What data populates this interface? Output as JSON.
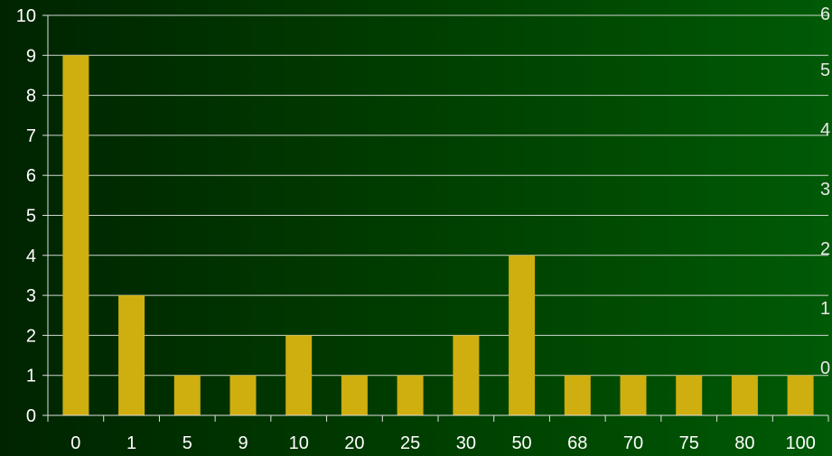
{
  "chart_data": {
    "type": "bar",
    "title": "",
    "xlabel": "",
    "ylabel": "",
    "categories": [
      "0",
      "1",
      "5",
      "9",
      "10",
      "20",
      "25",
      "30",
      "50",
      "68",
      "70",
      "75",
      "80",
      "100"
    ],
    "values": [
      9,
      3,
      1,
      1,
      2,
      1,
      1,
      2,
      4,
      1,
      1,
      1,
      1,
      1
    ],
    "ylim": [
      0,
      10
    ],
    "yticks": [
      "0",
      "1",
      "2",
      "3",
      "4",
      "5",
      "6",
      "7",
      "8",
      "9",
      "10"
    ],
    "secondary_axis_ticks": [
      "0",
      "1",
      "2",
      "3",
      "4",
      "5",
      "6"
    ],
    "grid": true,
    "legend": "none",
    "colors": {
      "bar": "#cfae10",
      "grid": "#cfd8cf",
      "axis": "#e0e0e0",
      "text": "#ffffff"
    }
  }
}
